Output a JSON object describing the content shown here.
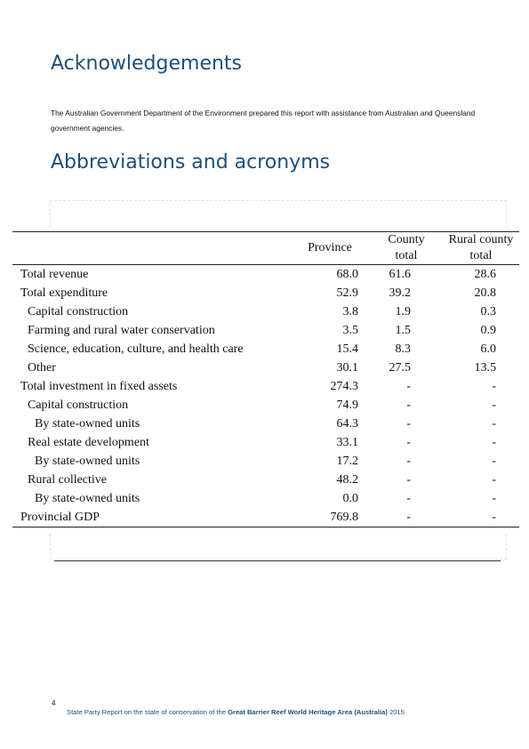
{
  "headings": {
    "acknowledgements": "Acknowledgements",
    "abbreviations": "Abbreviations and acronyms"
  },
  "acknowledgement_text": "The Australian Government Department of the Environment prepared this report with assistance from Australian and Queensland government agencies.",
  "table": {
    "columns": {
      "province": "Province",
      "county_line1": "County",
      "county_line2": "total",
      "rural_line1": "Rural county",
      "rural_line2": "total"
    },
    "rows": [
      {
        "label": "Total revenue",
        "province": "68.0",
        "county": "61.6",
        "rural": "28.6"
      },
      {
        "label": "Total expenditure",
        "province": "52.9",
        "county": "39.2",
        "rural": "20.8"
      },
      {
        "label": "Capital construction",
        "province": "3.8",
        "county": "1.9",
        "rural": "0.3"
      },
      {
        "label": "Farming and rural water conservation",
        "province": "3.5",
        "county": "1.5",
        "rural": "0.9"
      },
      {
        "label": "Science, education, culture, and health care",
        "province": "15.4",
        "county": "8.3",
        "rural": "6.0"
      },
      {
        "label": "Other",
        "province": "30.1",
        "county": "27.5",
        "rural": "13.5"
      },
      {
        "label": "Total investment in fixed assets",
        "province": "274.3",
        "county": "-",
        "rural": "-"
      },
      {
        "label": "Capital construction",
        "province": "74.9",
        "county": "-",
        "rural": "-"
      },
      {
        "label": "By state-owned units",
        "province": "64.3",
        "county": "-",
        "rural": "-"
      },
      {
        "label": "Real estate development",
        "province": "33.1",
        "county": "-",
        "rural": "-"
      },
      {
        "label": "By state-owned units",
        "province": "17.2",
        "county": "-",
        "rural": "-"
      },
      {
        "label": "Rural collective",
        "province": "48.2",
        "county": "-",
        "rural": "-"
      },
      {
        "label": "By state-owned units",
        "province": "0.0",
        "county": "-",
        "rural": "-"
      },
      {
        "label": "Provincial GDP",
        "province": "769.8",
        "county": "-",
        "rural": "-"
      }
    ]
  },
  "footer": {
    "page_number": "4",
    "text_before": "State Party Report on the state of conservation of the ",
    "text_bold": "Great Barrier Reef World Heritage Area (Australia)",
    "text_after": " 2015"
  }
}
